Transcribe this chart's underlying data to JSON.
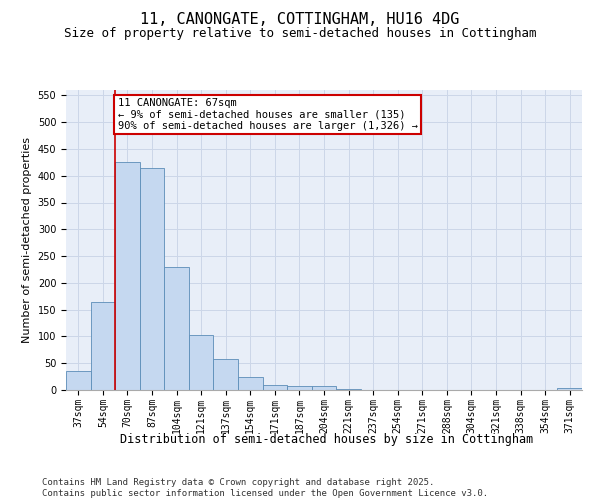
{
  "title": "11, CANONGATE, COTTINGHAM, HU16 4DG",
  "subtitle": "Size of property relative to semi-detached houses in Cottingham",
  "xlabel": "Distribution of semi-detached houses by size in Cottingham",
  "ylabel": "Number of semi-detached properties",
  "categories": [
    "37sqm",
    "54sqm",
    "70sqm",
    "87sqm",
    "104sqm",
    "121sqm",
    "137sqm",
    "154sqm",
    "171sqm",
    "187sqm",
    "204sqm",
    "221sqm",
    "237sqm",
    "254sqm",
    "271sqm",
    "288sqm",
    "304sqm",
    "321sqm",
    "338sqm",
    "354sqm",
    "371sqm"
  ],
  "values": [
    35,
    165,
    425,
    415,
    230,
    103,
    58,
    25,
    10,
    8,
    8,
    2,
    0,
    0,
    0,
    0,
    0,
    0,
    0,
    0,
    3
  ],
  "bar_color": "#c5d8f0",
  "bar_edge_color": "#5b8db8",
  "grid_color": "#ccd6e8",
  "background_color": "#e8eef8",
  "vline_x_index": 1.5,
  "vline_color": "#cc0000",
  "annotation_text": "11 CANONGATE: 67sqm\n← 9% of semi-detached houses are smaller (135)\n90% of semi-detached houses are larger (1,326) →",
  "annotation_box_color": "#cc0000",
  "ylim": [
    0,
    560
  ],
  "yticks": [
    0,
    50,
    100,
    150,
    200,
    250,
    300,
    350,
    400,
    450,
    500,
    550
  ],
  "footer": "Contains HM Land Registry data © Crown copyright and database right 2025.\nContains public sector information licensed under the Open Government Licence v3.0.",
  "title_fontsize": 11,
  "subtitle_fontsize": 9,
  "xlabel_fontsize": 8.5,
  "ylabel_fontsize": 8,
  "tick_fontsize": 7,
  "footer_fontsize": 6.5,
  "annotation_fontsize": 7.5
}
